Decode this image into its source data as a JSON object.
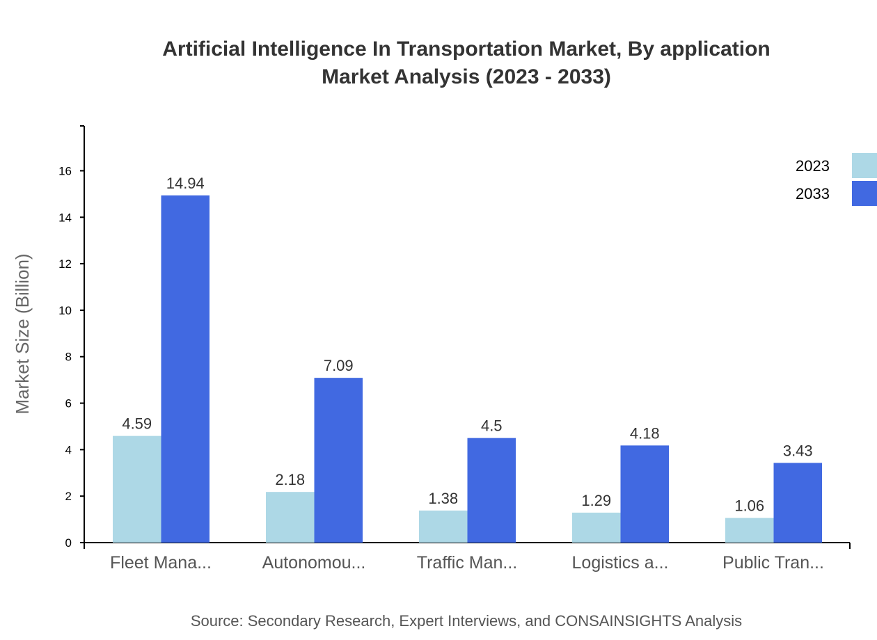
{
  "chart_data": {
    "type": "bar",
    "title": [
      "Artificial Intelligence In Transportation Market, By application",
      "Market Analysis (2023 - 2033)"
    ],
    "ylabel": "Market Size (Billion)",
    "xlabel": "",
    "categories": [
      "Fleet Mana...",
      "Autonomou...",
      "Traffic Man...",
      "Logistics a...",
      "Public Tran..."
    ],
    "series": [
      {
        "name": "2023",
        "color": "#ADD8E6",
        "values": [
          4.59,
          2.18,
          1.38,
          1.29,
          1.06
        ]
      },
      {
        "name": "2033",
        "color": "#4169E1",
        "values": [
          14.94,
          7.09,
          4.5,
          4.18,
          3.43
        ]
      }
    ],
    "ylim": [
      0,
      17.93
    ],
    "yticks": [
      0,
      2,
      4,
      6,
      8,
      10,
      12,
      14,
      16
    ],
    "grid": false,
    "legend": "top-right",
    "source": "Source: Secondary Research, Expert Interviews, and CONSAINSIGHTS Analysis"
  }
}
